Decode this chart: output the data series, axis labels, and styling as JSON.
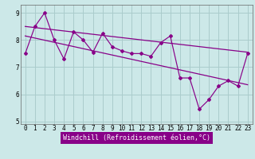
{
  "xlabel": "Windchill (Refroidissement éolien,°C)",
  "background_color": "#cce8e8",
  "grid_color": "#aacccc",
  "line_color": "#880088",
  "x_hours": [
    0,
    1,
    2,
    3,
    4,
    5,
    6,
    7,
    8,
    9,
    10,
    11,
    12,
    13,
    14,
    15,
    16,
    17,
    18,
    19,
    20,
    21,
    22,
    23
  ],
  "y_main": [
    7.5,
    8.5,
    9.0,
    8.0,
    7.3,
    8.3,
    8.0,
    7.55,
    8.25,
    7.75,
    7.6,
    7.5,
    7.5,
    7.4,
    7.9,
    8.15,
    6.6,
    6.6,
    5.45,
    5.8,
    6.3,
    6.5,
    6.3,
    7.5
  ],
  "trend1_x": [
    0,
    23
  ],
  "trend1_y": [
    8.5,
    7.55
  ],
  "trend2_x": [
    0,
    23
  ],
  "trend2_y": [
    8.15,
    6.35
  ],
  "ylim": [
    4.9,
    9.3
  ],
  "yticks": [
    5,
    6,
    7,
    8,
    9
  ],
  "xlim": [
    -0.5,
    23.5
  ],
  "tick_fontsize": 5.5,
  "label_fontsize": 6.0
}
